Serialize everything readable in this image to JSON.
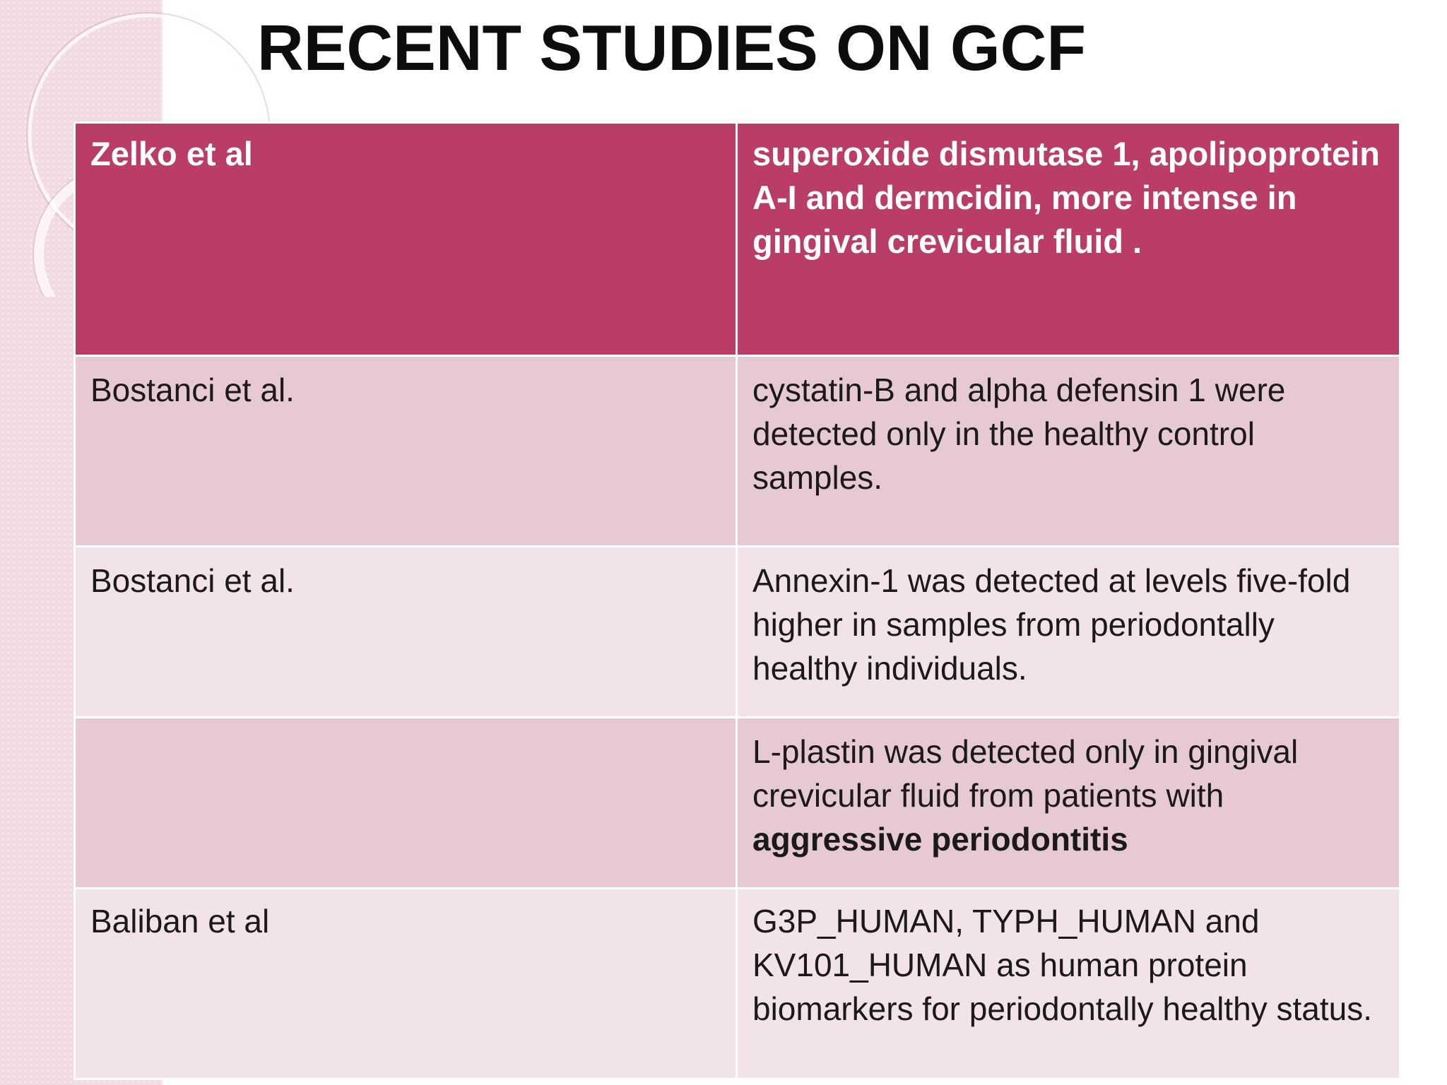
{
  "slide": {
    "title": "RECENT STUDIES ON GCF"
  },
  "table": {
    "rows": [
      {
        "author": "Zelko et al",
        "finding": "superoxide dismutase 1, apolipoprotein A-I and dermcidin, more intense in gingival crevicular fluid ."
      },
      {
        "author": "Bostanci et al.",
        "finding": "cystatin-B and alpha defensin 1 were detected only in the healthy control samples."
      },
      {
        "author": "Bostanci et al.",
        "finding": "Annexin-1 was detected at levels five-fold higher in samples from periodontally healthy individuals."
      },
      {
        "author": "",
        "finding": "L-plastin was detected only in gingival crevicular fluid from patients with",
        "finding_bold": "aggressive periodontitis"
      },
      {
        "author": "Baliban et al",
        "finding": "G3P_HUMAN, TYPH_HUMAN and KV101_HUMAN as human protein biomarkers for periodontally healthy status."
      }
    ]
  },
  "colors": {
    "header_fill": "#ba3d65",
    "row_dark": "#e6c9d3",
    "row_light": "#f1e3e9",
    "side_strip": "#f2dbe3"
  }
}
